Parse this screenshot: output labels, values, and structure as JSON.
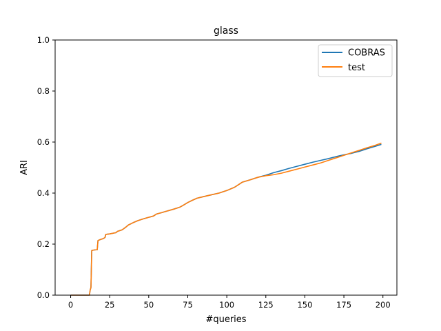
{
  "chart_data": {
    "type": "line",
    "title": "glass",
    "xlabel": "#queries",
    "ylabel": "ARI",
    "xlim": [
      -9.95,
      208.95
    ],
    "ylim": [
      0.0,
      1.0
    ],
    "xticks": [
      0,
      25,
      50,
      75,
      100,
      125,
      150,
      175,
      200
    ],
    "xtick_labels": [
      "0",
      "25",
      "50",
      "75",
      "100",
      "125",
      "150",
      "175",
      "200"
    ],
    "yticks": [
      0.0,
      0.2,
      0.4,
      0.6,
      0.8,
      1.0
    ],
    "ytick_labels": [
      "0.0",
      "0.2",
      "0.4",
      "0.6",
      "0.8",
      "1.0"
    ],
    "grid": false,
    "legend_position": "top-right",
    "series": [
      {
        "name": "COBRAS",
        "color": "#1f77b4",
        "points": [
          [
            0,
            0
          ],
          [
            12,
            0
          ],
          [
            12.5,
            0.02
          ],
          [
            13,
            0.03
          ],
          [
            13.5,
            0.175
          ],
          [
            15,
            0.177
          ],
          [
            17,
            0.178
          ],
          [
            17.5,
            0.214
          ],
          [
            19,
            0.218
          ],
          [
            21,
            0.222
          ],
          [
            22,
            0.226
          ],
          [
            22.5,
            0.238
          ],
          [
            25,
            0.24
          ],
          [
            29,
            0.245
          ],
          [
            30,
            0.25
          ],
          [
            33,
            0.256
          ],
          [
            35,
            0.265
          ],
          [
            37,
            0.275
          ],
          [
            40,
            0.284
          ],
          [
            43,
            0.292
          ],
          [
            46,
            0.298
          ],
          [
            50,
            0.305
          ],
          [
            53,
            0.31
          ],
          [
            55,
            0.318
          ],
          [
            58,
            0.323
          ],
          [
            62,
            0.33
          ],
          [
            66,
            0.337
          ],
          [
            70,
            0.345
          ],
          [
            72,
            0.352
          ],
          [
            75,
            0.363
          ],
          [
            78,
            0.372
          ],
          [
            81,
            0.38
          ],
          [
            85,
            0.386
          ],
          [
            90,
            0.393
          ],
          [
            95,
            0.4
          ],
          [
            100,
            0.41
          ],
          [
            105,
            0.423
          ],
          [
            108,
            0.435
          ],
          [
            110,
            0.443
          ],
          [
            115,
            0.452
          ],
          [
            120,
            0.462
          ],
          [
            125,
            0.47
          ],
          [
            130,
            0.48
          ],
          [
            135,
            0.488
          ],
          [
            140,
            0.497
          ],
          [
            145,
            0.505
          ],
          [
            150,
            0.513
          ],
          [
            155,
            0.521
          ],
          [
            160,
            0.528
          ],
          [
            165,
            0.535
          ],
          [
            170,
            0.543
          ],
          [
            175,
            0.55
          ],
          [
            180,
            0.556
          ],
          [
            185,
            0.564
          ],
          [
            190,
            0.574
          ],
          [
            195,
            0.583
          ],
          [
            199,
            0.591
          ]
        ]
      },
      {
        "name": "test",
        "color": "#ff7f0e",
        "points": [
          [
            0,
            0
          ],
          [
            12,
            0
          ],
          [
            12.5,
            0.02
          ],
          [
            13,
            0.03
          ],
          [
            13.5,
            0.175
          ],
          [
            15,
            0.177
          ],
          [
            17,
            0.178
          ],
          [
            17.5,
            0.214
          ],
          [
            19,
            0.218
          ],
          [
            21,
            0.222
          ],
          [
            22,
            0.226
          ],
          [
            22.5,
            0.238
          ],
          [
            25,
            0.24
          ],
          [
            29,
            0.245
          ],
          [
            30,
            0.25
          ],
          [
            33,
            0.256
          ],
          [
            35,
            0.265
          ],
          [
            37,
            0.275
          ],
          [
            40,
            0.284
          ],
          [
            43,
            0.292
          ],
          [
            46,
            0.298
          ],
          [
            50,
            0.305
          ],
          [
            53,
            0.31
          ],
          [
            55,
            0.318
          ],
          [
            58,
            0.323
          ],
          [
            62,
            0.33
          ],
          [
            66,
            0.337
          ],
          [
            70,
            0.345
          ],
          [
            72,
            0.352
          ],
          [
            75,
            0.363
          ],
          [
            78,
            0.372
          ],
          [
            81,
            0.38
          ],
          [
            85,
            0.386
          ],
          [
            90,
            0.393
          ],
          [
            95,
            0.4
          ],
          [
            100,
            0.41
          ],
          [
            105,
            0.423
          ],
          [
            108,
            0.435
          ],
          [
            110,
            0.443
          ],
          [
            115,
            0.452
          ],
          [
            120,
            0.462
          ],
          [
            125,
            0.468
          ],
          [
            130,
            0.472
          ],
          [
            135,
            0.478
          ],
          [
            140,
            0.486
          ],
          [
            145,
            0.494
          ],
          [
            150,
            0.502
          ],
          [
            155,
            0.51
          ],
          [
            160,
            0.518
          ],
          [
            165,
            0.528
          ],
          [
            170,
            0.538
          ],
          [
            175,
            0.548
          ],
          [
            180,
            0.558
          ],
          [
            185,
            0.568
          ],
          [
            190,
            0.578
          ],
          [
            195,
            0.587
          ],
          [
            199,
            0.596
          ]
        ]
      }
    ]
  }
}
